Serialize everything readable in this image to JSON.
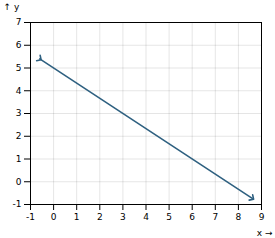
{
  "chart_data": {
    "type": "line",
    "x": [
      -0.6,
      8.6
    ],
    "values": [
      5.4,
      -0.73
    ],
    "color": "#2E6080",
    "marker": "arrow",
    "x_label": "x",
    "y_label": "y",
    "xlim": [
      -1,
      9
    ],
    "ylim": [
      -1,
      7
    ],
    "xticks": [
      -1,
      0,
      1,
      2,
      3,
      4,
      5,
      6,
      7,
      8,
      9
    ],
    "yticks": [
      -1,
      0,
      1,
      2,
      3,
      4,
      5,
      6,
      7
    ],
    "grid": true
  }
}
